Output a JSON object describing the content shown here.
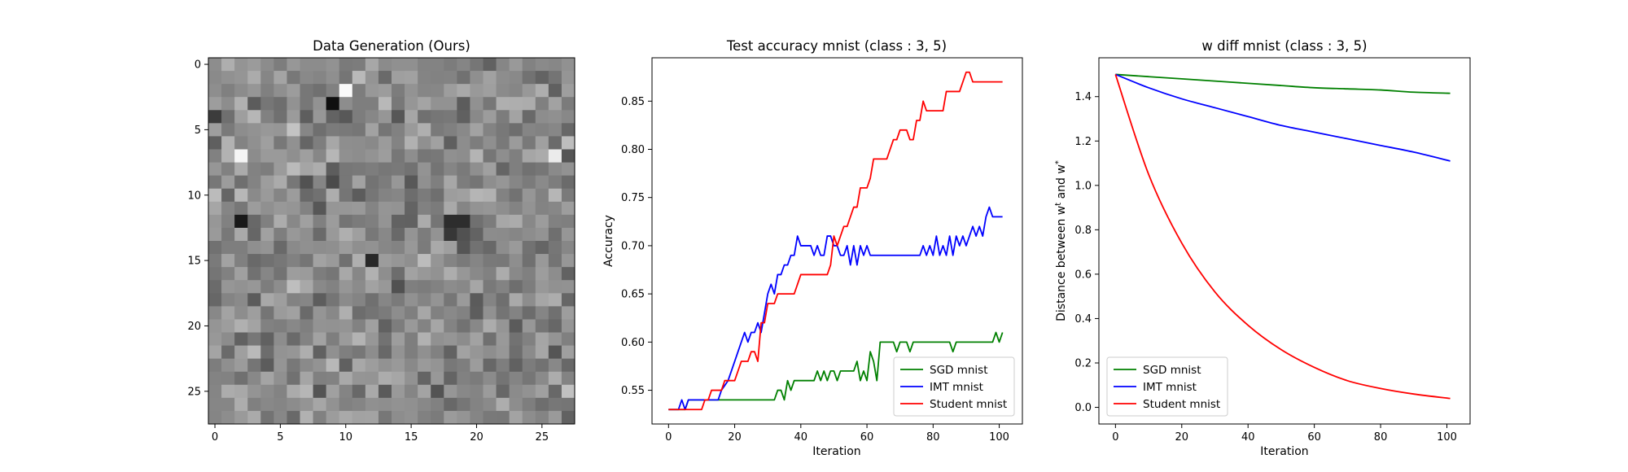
{
  "panel1": {
    "title": "Data Generation (Ours)",
    "xticks": [
      "0",
      "5",
      "10",
      "15",
      "20",
      "25"
    ],
    "yticks": [
      "0",
      "5",
      "10",
      "15",
      "20",
      "25"
    ]
  },
  "panel2": {
    "title": "Test accuracy mnist (class : 3, 5)",
    "xlabel": "Iteration",
    "ylabel": "Accuracy"
  },
  "panel3": {
    "title": "w diff mnist (class : 3, 5)",
    "xlabel": "Iteration",
    "ylabel": "Distance between w^t and w^*"
  },
  "colors": {
    "sgd": "#008000",
    "imt": "#0000ff",
    "student": "#ff0000"
  },
  "chart_data": [
    {
      "type": "heatmap",
      "title": "Data Generation (Ours)",
      "rows": 28,
      "cols": 28,
      "colormap": "gray",
      "xlim": [
        -0.5,
        27.5
      ],
      "ylim": [
        27.5,
        -0.5
      ],
      "xticks": [
        0,
        5,
        10,
        15,
        20,
        25
      ],
      "yticks": [
        0,
        5,
        10,
        15,
        20,
        25
      ],
      "values": "28x28 noise-like grayscale pixels; notable dark pixels near (9,3) and (2,12); bright pixels near (10,2) and (2,7)"
    },
    {
      "type": "line",
      "title": "Test accuracy mnist (class : 3, 5)",
      "xlabel": "Iteration",
      "ylabel": "Accuracy",
      "xlim": [
        -5,
        107
      ],
      "ylim": [
        0.515,
        0.895
      ],
      "xticks": [
        0,
        20,
        40,
        60,
        80,
        100
      ],
      "yticks": [
        0.55,
        0.6,
        0.65,
        0.7,
        0.75,
        0.8,
        0.85
      ],
      "legend_position": "lower-right",
      "series": [
        {
          "name": "SGD mnist",
          "color": "#008000",
          "points": [
            [
              0,
              0.53
            ],
            [
              5,
              0.53
            ],
            [
              6,
              0.54
            ],
            [
              32,
              0.54
            ],
            [
              33,
              0.55
            ],
            [
              34,
              0.55
            ],
            [
              35,
              0.54
            ],
            [
              36,
              0.56
            ],
            [
              37,
              0.55
            ],
            [
              38,
              0.56
            ],
            [
              44,
              0.56
            ],
            [
              45,
              0.57
            ],
            [
              46,
              0.56
            ],
            [
              47,
              0.57
            ],
            [
              48,
              0.56
            ],
            [
              49,
              0.57
            ],
            [
              50,
              0.57
            ],
            [
              51,
              0.56
            ],
            [
              52,
              0.57
            ],
            [
              56,
              0.57
            ],
            [
              57,
              0.58
            ],
            [
              58,
              0.56
            ],
            [
              59,
              0.57
            ],
            [
              60,
              0.56
            ],
            [
              61,
              0.59
            ],
            [
              62,
              0.58
            ],
            [
              63,
              0.56
            ],
            [
              64,
              0.6
            ],
            [
              68,
              0.6
            ],
            [
              69,
              0.59
            ],
            [
              70,
              0.6
            ],
            [
              72,
              0.6
            ],
            [
              73,
              0.59
            ],
            [
              74,
              0.6
            ],
            [
              85,
              0.6
            ],
            [
              86,
              0.59
            ],
            [
              87,
              0.6
            ],
            [
              98,
              0.6
            ],
            [
              99,
              0.61
            ],
            [
              100,
              0.6
            ],
            [
              101,
              0.61
            ]
          ]
        },
        {
          "name": "IMT mnist",
          "color": "#0000ff",
          "points": [
            [
              0,
              0.53
            ],
            [
              3,
              0.53
            ],
            [
              4,
              0.54
            ],
            [
              5,
              0.53
            ],
            [
              6,
              0.54
            ],
            [
              15,
              0.54
            ],
            [
              16,
              0.55
            ],
            [
              18,
              0.56
            ],
            [
              20,
              0.58
            ],
            [
              22,
              0.6
            ],
            [
              23,
              0.61
            ],
            [
              24,
              0.6
            ],
            [
              25,
              0.61
            ],
            [
              26,
              0.61
            ],
            [
              27,
              0.62
            ],
            [
              28,
              0.61
            ],
            [
              29,
              0.63
            ],
            [
              30,
              0.65
            ],
            [
              31,
              0.66
            ],
            [
              32,
              0.65
            ],
            [
              33,
              0.67
            ],
            [
              34,
              0.67
            ],
            [
              35,
              0.68
            ],
            [
              36,
              0.68
            ],
            [
              37,
              0.69
            ],
            [
              38,
              0.69
            ],
            [
              39,
              0.71
            ],
            [
              40,
              0.7
            ],
            [
              43,
              0.7
            ],
            [
              44,
              0.69
            ],
            [
              45,
              0.7
            ],
            [
              46,
              0.69
            ],
            [
              47,
              0.69
            ],
            [
              48,
              0.71
            ],
            [
              49,
              0.71
            ],
            [
              50,
              0.7
            ],
            [
              51,
              0.7
            ],
            [
              52,
              0.69
            ],
            [
              53,
              0.69
            ],
            [
              54,
              0.7
            ],
            [
              55,
              0.68
            ],
            [
              56,
              0.7
            ],
            [
              57,
              0.68
            ],
            [
              58,
              0.7
            ],
            [
              59,
              0.69
            ],
            [
              60,
              0.7
            ],
            [
              61,
              0.69
            ],
            [
              62,
              0.69
            ],
            [
              76,
              0.69
            ],
            [
              77,
              0.7
            ],
            [
              78,
              0.69
            ],
            [
              79,
              0.7
            ],
            [
              80,
              0.69
            ],
            [
              81,
              0.71
            ],
            [
              82,
              0.69
            ],
            [
              83,
              0.7
            ],
            [
              84,
              0.69
            ],
            [
              85,
              0.71
            ],
            [
              86,
              0.69
            ],
            [
              87,
              0.71
            ],
            [
              88,
              0.7
            ],
            [
              89,
              0.71
            ],
            [
              90,
              0.7
            ],
            [
              91,
              0.71
            ],
            [
              92,
              0.72
            ],
            [
              93,
              0.71
            ],
            [
              94,
              0.72
            ],
            [
              95,
              0.71
            ],
            [
              96,
              0.73
            ],
            [
              97,
              0.74
            ],
            [
              98,
              0.73
            ],
            [
              101,
              0.73
            ]
          ]
        },
        {
          "name": "Student mnist",
          "color": "#ff0000",
          "points": [
            [
              0,
              0.53
            ],
            [
              10,
              0.53
            ],
            [
              11,
              0.54
            ],
            [
              12,
              0.54
            ],
            [
              13,
              0.55
            ],
            [
              16,
              0.55
            ],
            [
              17,
              0.56
            ],
            [
              20,
              0.56
            ],
            [
              21,
              0.57
            ],
            [
              22,
              0.58
            ],
            [
              24,
              0.58
            ],
            [
              25,
              0.59
            ],
            [
              26,
              0.59
            ],
            [
              27,
              0.58
            ],
            [
              28,
              0.62
            ],
            [
              29,
              0.62
            ],
            [
              30,
              0.64
            ],
            [
              32,
              0.64
            ],
            [
              33,
              0.65
            ],
            [
              38,
              0.65
            ],
            [
              39,
              0.66
            ],
            [
              40,
              0.67
            ],
            [
              48,
              0.67
            ],
            [
              49,
              0.68
            ],
            [
              50,
              0.71
            ],
            [
              51,
              0.7
            ],
            [
              52,
              0.71
            ],
            [
              53,
              0.72
            ],
            [
              54,
              0.72
            ],
            [
              55,
              0.73
            ],
            [
              56,
              0.74
            ],
            [
              57,
              0.74
            ],
            [
              58,
              0.76
            ],
            [
              60,
              0.76
            ],
            [
              61,
              0.77
            ],
            [
              62,
              0.79
            ],
            [
              66,
              0.79
            ],
            [
              67,
              0.8
            ],
            [
              68,
              0.81
            ],
            [
              69,
              0.81
            ],
            [
              70,
              0.82
            ],
            [
              72,
              0.82
            ],
            [
              73,
              0.81
            ],
            [
              74,
              0.81
            ],
            [
              75,
              0.83
            ],
            [
              76,
              0.83
            ],
            [
              77,
              0.85
            ],
            [
              78,
              0.84
            ],
            [
              83,
              0.84
            ],
            [
              84,
              0.86
            ],
            [
              88,
              0.86
            ],
            [
              89,
              0.87
            ],
            [
              90,
              0.88
            ],
            [
              91,
              0.88
            ],
            [
              92,
              0.87
            ],
            [
              101,
              0.87
            ]
          ]
        }
      ]
    },
    {
      "type": "line",
      "title": "w diff mnist (class : 3, 5)",
      "xlabel": "Iteration",
      "ylabel": "Distance between w^t and w^*",
      "xlim": [
        -5,
        107
      ],
      "ylim": [
        -0.075,
        1.575
      ],
      "xticks": [
        0,
        20,
        40,
        60,
        80,
        100
      ],
      "yticks": [
        0.0,
        0.2,
        0.4,
        0.6,
        0.8,
        1.0,
        1.2,
        1.4
      ],
      "legend_position": "lower-left",
      "series": [
        {
          "name": "SGD mnist",
          "color": "#008000",
          "x": [
            0,
            10,
            20,
            30,
            40,
            50,
            60,
            70,
            80,
            90,
            101
          ],
          "y": [
            1.5,
            1.49,
            1.48,
            1.47,
            1.46,
            1.45,
            1.44,
            1.435,
            1.43,
            1.42,
            1.415
          ]
        },
        {
          "name": "IMT mnist",
          "color": "#0000ff",
          "x": [
            0,
            10,
            20,
            30,
            40,
            50,
            60,
            70,
            80,
            90,
            101
          ],
          "y": [
            1.5,
            1.44,
            1.39,
            1.35,
            1.31,
            1.27,
            1.24,
            1.21,
            1.18,
            1.15,
            1.11
          ]
        },
        {
          "name": "Student mnist",
          "color": "#ff0000",
          "x": [
            0,
            10,
            20,
            30,
            40,
            50,
            60,
            70,
            80,
            90,
            101
          ],
          "y": [
            1.5,
            1.05,
            0.74,
            0.52,
            0.37,
            0.26,
            0.18,
            0.12,
            0.085,
            0.06,
            0.04
          ]
        }
      ]
    }
  ]
}
